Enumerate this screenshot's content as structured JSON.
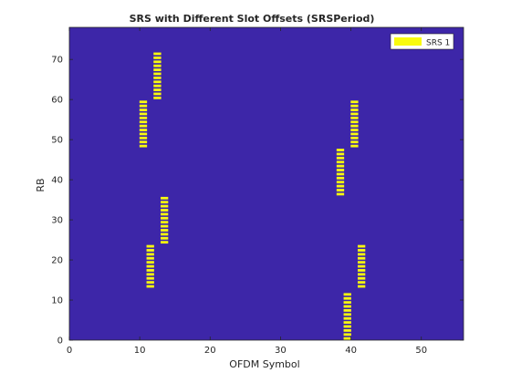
{
  "figure": {
    "title": "SRS with Different Slot Offsets (SRSPeriod)",
    "xlabel": "OFDM Symbol",
    "ylabel": "RB"
  },
  "chart_data": {
    "type": "heatmap",
    "title": "SRS with Different Slot Offsets (SRSPeriod)",
    "xlabel": "OFDM Symbol",
    "ylabel": "RB",
    "xlim": [
      0,
      56
    ],
    "ylim": [
      0,
      78
    ],
    "xticks": [
      0,
      10,
      20,
      30,
      40,
      50
    ],
    "yticks": [
      0,
      10,
      20,
      30,
      40,
      50,
      60,
      70
    ],
    "background_color": "#3D26A8",
    "srs_color": "#F9FB0E",
    "legend": {
      "entries": [
        "SRS 1"
      ],
      "location": "top-right"
    },
    "grid": false,
    "series": [
      {
        "name": "SRS 1",
        "allocations": [
          {
            "symbol": 10,
            "rb_start": 48,
            "rb_end": 59
          },
          {
            "symbol": 11,
            "rb_start": 13,
            "rb_end": 23
          },
          {
            "symbol": 12,
            "rb_start": 60,
            "rb_end": 71
          },
          {
            "symbol": 13,
            "rb_start": 24,
            "rb_end": 35
          },
          {
            "symbol": 38,
            "rb_start": 36,
            "rb_end": 47
          },
          {
            "symbol": 39,
            "rb_start": 0,
            "rb_end": 11
          },
          {
            "symbol": 40,
            "rb_start": 48,
            "rb_end": 59
          },
          {
            "symbol": 41,
            "rb_start": 13,
            "rb_end": 23
          }
        ]
      }
    ]
  }
}
